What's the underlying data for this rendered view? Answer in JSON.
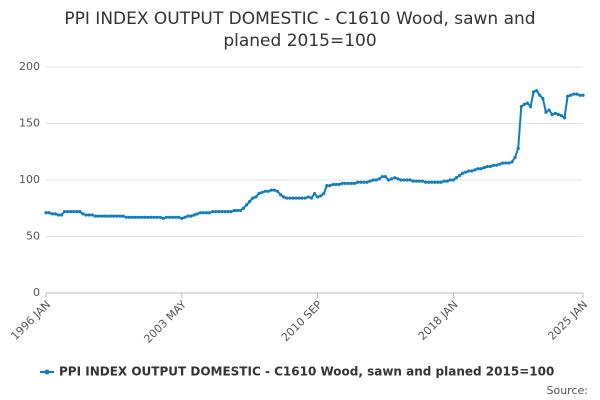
{
  "chart_data": {
    "type": "line",
    "title": "PPI INDEX OUTPUT DOMESTIC - C1610 Wood, sawn and planed 2015=100",
    "categories": [
      "1996 JAN",
      null,
      null,
      null,
      null,
      null,
      null,
      null,
      null,
      null,
      null,
      null,
      null,
      null,
      null,
      null,
      null,
      null,
      null,
      null,
      null,
      null,
      null,
      null,
      null,
      null,
      null,
      null,
      null,
      null,
      null,
      null,
      null,
      null,
      null,
      null,
      null,
      null,
      null,
      null,
      null,
      null,
      null,
      null,
      "2003 MAY",
      null,
      null,
      null,
      null,
      null,
      null,
      null,
      null,
      null,
      null,
      null,
      null,
      null,
      null,
      null,
      null,
      null,
      null,
      null,
      null,
      null,
      null,
      null,
      null,
      null,
      null,
      null,
      null,
      null,
      null,
      null,
      null,
      null,
      null,
      null,
      null,
      null,
      null,
      null,
      null,
      null,
      null,
      null,
      "2010 SEP",
      null,
      null,
      null,
      null,
      null,
      null,
      null,
      null,
      null,
      null,
      null,
      null,
      null,
      null,
      null,
      null,
      null,
      null,
      null,
      null,
      null,
      null,
      null,
      null,
      null,
      null,
      null,
      null,
      null,
      null,
      null,
      null,
      null,
      null,
      null,
      null,
      null,
      null,
      null,
      null,
      null,
      null,
      null,
      "2018 JAN",
      null,
      null,
      null,
      null,
      null,
      null,
      null,
      null,
      null,
      null,
      null,
      null,
      null,
      null,
      null,
      null,
      null,
      null,
      null,
      null,
      null,
      null,
      null,
      null,
      null,
      null,
      null,
      null,
      null,
      null,
      null,
      null,
      null,
      null,
      null,
      null,
      null,
      null,
      null,
      null,
      null,
      "2025 JAN"
    ],
    "series": [
      {
        "name": "PPI INDEX OUTPUT DOMESTIC - C1610 Wood, sawn and planed 2015=100",
        "color": "#0f7dbf",
        "values": [
          71,
          71,
          70,
          70,
          69,
          69,
          72,
          72,
          72,
          72,
          72,
          72,
          70,
          69,
          69,
          69,
          68,
          68,
          68,
          68,
          68,
          68,
          68,
          68,
          68,
          68,
          67,
          67,
          67,
          67,
          67,
          67,
          67,
          67,
          67,
          67,
          67,
          67,
          66,
          67,
          67,
          67,
          67,
          67,
          66,
          67,
          68,
          68,
          69,
          70,
          71,
          71,
          71,
          71,
          72,
          72,
          72,
          72,
          72,
          72,
          72,
          73,
          73,
          73,
          75,
          78,
          81,
          84,
          85,
          88,
          89,
          90,
          90,
          91,
          91,
          90,
          87,
          85,
          84,
          84,
          84,
          84,
          84,
          84,
          84,
          85,
          84,
          88,
          85,
          86,
          88,
          95,
          95,
          96,
          96,
          96,
          97,
          97,
          97,
          97,
          97,
          98,
          98,
          98,
          98,
          99,
          100,
          100,
          101,
          103,
          103,
          100,
          101,
          102,
          101,
          100,
          100,
          100,
          100,
          99,
          99,
          99,
          99,
          98,
          98,
          98,
          98,
          98,
          98,
          99,
          99,
          100,
          100,
          102,
          104,
          106,
          107,
          108,
          108,
          109,
          110,
          110,
          111,
          112,
          112,
          113,
          113,
          114,
          115,
          115,
          115,
          116,
          120,
          128,
          165,
          167,
          168,
          165,
          178,
          179,
          175,
          172,
          160,
          162,
          158,
          159,
          158,
          157,
          155,
          174,
          175,
          176,
          176,
          175,
          175
        ]
      }
    ],
    "ylim": [
      0,
      200
    ],
    "yticks": [
      0,
      50,
      100,
      150,
      200
    ],
    "grid": true,
    "legend": "bottom",
    "source": "Source:"
  }
}
